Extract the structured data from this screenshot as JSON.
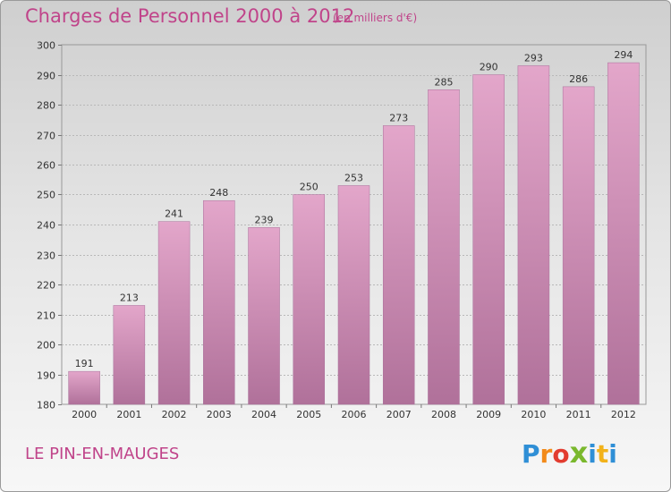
{
  "header": {
    "title": "Charges de Personnel 2000 à 2012",
    "subtitle": "(en milliers d'€)"
  },
  "footer": {
    "town": "LE PIN-EN-MAUGES",
    "logo": [
      "P",
      "r",
      "o",
      "x",
      "i",
      "t",
      "i"
    ],
    "logo_colors": [
      "#2f8fd6",
      "#f28a1a",
      "#e23c2f",
      "#7ab82d",
      "#2f8fd6",
      "#f2b21a",
      "#2f8fd6"
    ]
  },
  "colors": {
    "bar_light": "#e3a6ca",
    "bar_dark": "#b0719a",
    "title": "#c0448a"
  },
  "chart_data": {
    "type": "bar",
    "categories": [
      "2000",
      "2001",
      "2002",
      "2003",
      "2004",
      "2005",
      "2006",
      "2007",
      "2008",
      "2009",
      "2010",
      "2011",
      "2012"
    ],
    "values": [
      191,
      213,
      241,
      248,
      239,
      250,
      253,
      273,
      285,
      290,
      293,
      286,
      294
    ],
    "ylim": [
      180,
      300
    ],
    "yticks": [
      180,
      190,
      200,
      210,
      220,
      230,
      240,
      250,
      260,
      270,
      280,
      290,
      300
    ],
    "grid": true,
    "legend": "none"
  }
}
